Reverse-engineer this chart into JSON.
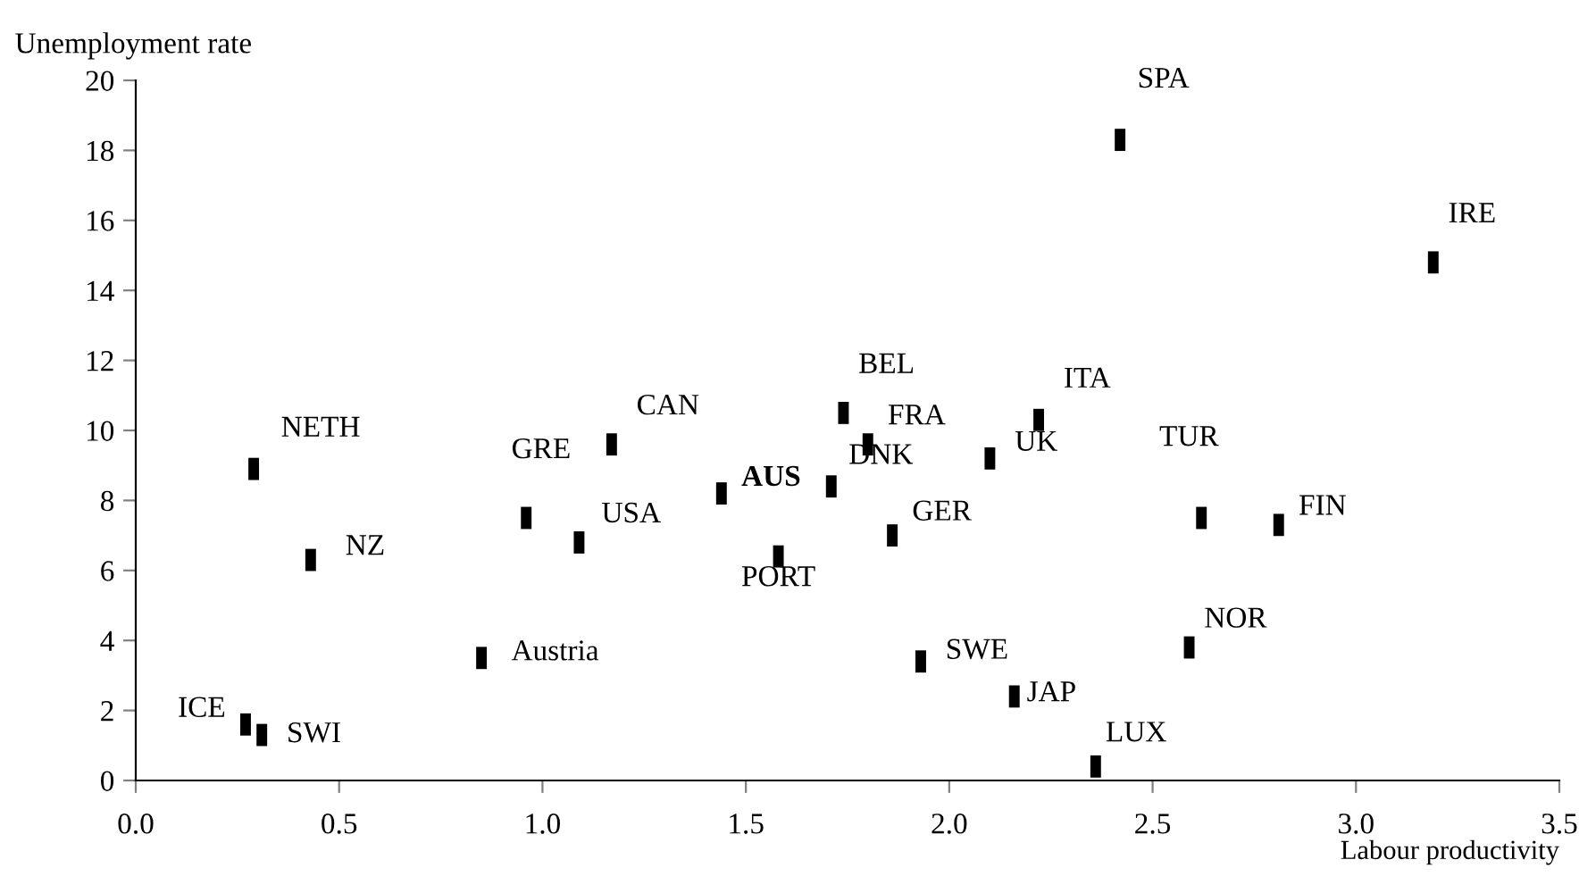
{
  "chart_data": {
    "type": "scatter",
    "xlabel": "Labour productivity",
    "ylabel": "Unemployment rate",
    "color": "#000000",
    "x": [
      0.27,
      0.31,
      0.43,
      0.29,
      0.85,
      0.96,
      1.09,
      1.17,
      1.44,
      1.58,
      1.71,
      1.74,
      1.8,
      1.86,
      1.93,
      2.1,
      2.22,
      2.16,
      2.36,
      2.42,
      3.19,
      2.62,
      2.81,
      2.59
    ],
    "values": [
      1.6,
      1.3,
      6.3,
      8.9,
      3.5,
      7.5,
      6.8,
      9.6,
      8.2,
      6.4,
      8.4,
      10.5,
      9.6,
      7.0,
      3.4,
      9.2,
      10.3,
      2.4,
      0.4,
      18.3,
      14.8,
      7.5,
      7.3,
      3.8
    ],
    "annotations": [
      {
        "text": "ICE",
        "x": 0.27,
        "y": 1.6
      },
      {
        "text": "SWI",
        "x": 0.31,
        "y": 1.3
      },
      {
        "text": "NZ",
        "x": 0.43,
        "y": 6.3
      },
      {
        "text": "NETH",
        "x": 0.29,
        "y": 8.9
      },
      {
        "text": "Austria",
        "x": 0.85,
        "y": 3.5
      },
      {
        "text": "GRE",
        "x": 0.96,
        "y": 7.5
      },
      {
        "text": "USA",
        "x": 1.09,
        "y": 6.8
      },
      {
        "text": "CAN",
        "x": 1.17,
        "y": 9.6
      },
      {
        "text": "AUS",
        "x": 1.44,
        "y": 8.2
      },
      {
        "text": "PORT",
        "x": 1.58,
        "y": 6.4
      },
      {
        "text": "DNK",
        "x": 1.71,
        "y": 8.4
      },
      {
        "text": "BEL",
        "x": 1.74,
        "y": 10.5
      },
      {
        "text": "FRA",
        "x": 1.8,
        "y": 9.6
      },
      {
        "text": "GER",
        "x": 1.86,
        "y": 7.0
      },
      {
        "text": "SWE",
        "x": 1.93,
        "y": 3.4
      },
      {
        "text": "UK",
        "x": 2.1,
        "y": 9.2
      },
      {
        "text": "ITA",
        "x": 2.22,
        "y": 10.3
      },
      {
        "text": "JAP",
        "x": 2.16,
        "y": 2.4
      },
      {
        "text": "LUX",
        "x": 2.36,
        "y": 0.4
      },
      {
        "text": "SPA",
        "x": 2.42,
        "y": 18.3
      },
      {
        "text": "IRE",
        "x": 3.19,
        "y": 14.8
      },
      {
        "text": "TUR",
        "x": 2.62,
        "y": 7.5
      },
      {
        "text": "FIN",
        "x": 2.81,
        "y": 7.3
      },
      {
        "text": "NOR",
        "x": 2.59,
        "y": 3.8
      }
    ],
    "xlim": [
      0,
      3.5
    ],
    "xticks": [
      {
        "value": 0,
        "label": "0.0"
      },
      {
        "value": 0.5,
        "label": "0.5"
      },
      {
        "value": 1,
        "label": "1.0"
      },
      {
        "value": 1.5,
        "label": "1.5"
      },
      {
        "value": 2,
        "label": "2.0"
      },
      {
        "value": 2.5,
        "label": "2.5"
      },
      {
        "value": 3,
        "label": "3.0"
      },
      {
        "value": 3.5,
        "label": "3.5"
      }
    ],
    "ylim": [
      0,
      20
    ],
    "yticks": [
      0,
      2,
      4,
      6,
      8,
      10,
      12,
      14,
      16,
      18,
      20
    ]
  }
}
